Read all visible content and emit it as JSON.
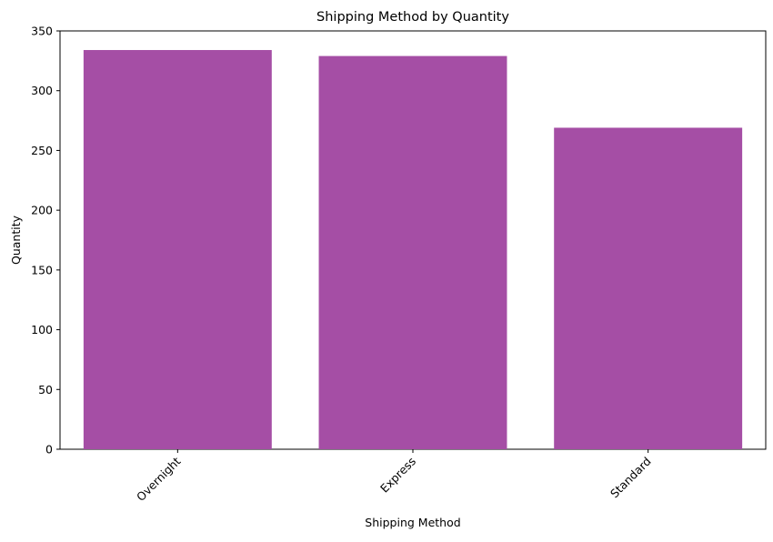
{
  "chart_data": {
    "type": "bar",
    "title": "Shipping Method by Quantity",
    "xlabel": "Shipping Method",
    "ylabel": "Quantity",
    "categories": [
      "Overnight",
      "Express",
      "Standard"
    ],
    "values": [
      334,
      329,
      269
    ],
    "ylim": [
      0,
      350
    ],
    "yticks": [
      0,
      50,
      100,
      150,
      200,
      250,
      300,
      350
    ],
    "bar_color": "#a54ea5",
    "grid": false,
    "legend": "none",
    "xtick_rotation": "45 degrees"
  }
}
